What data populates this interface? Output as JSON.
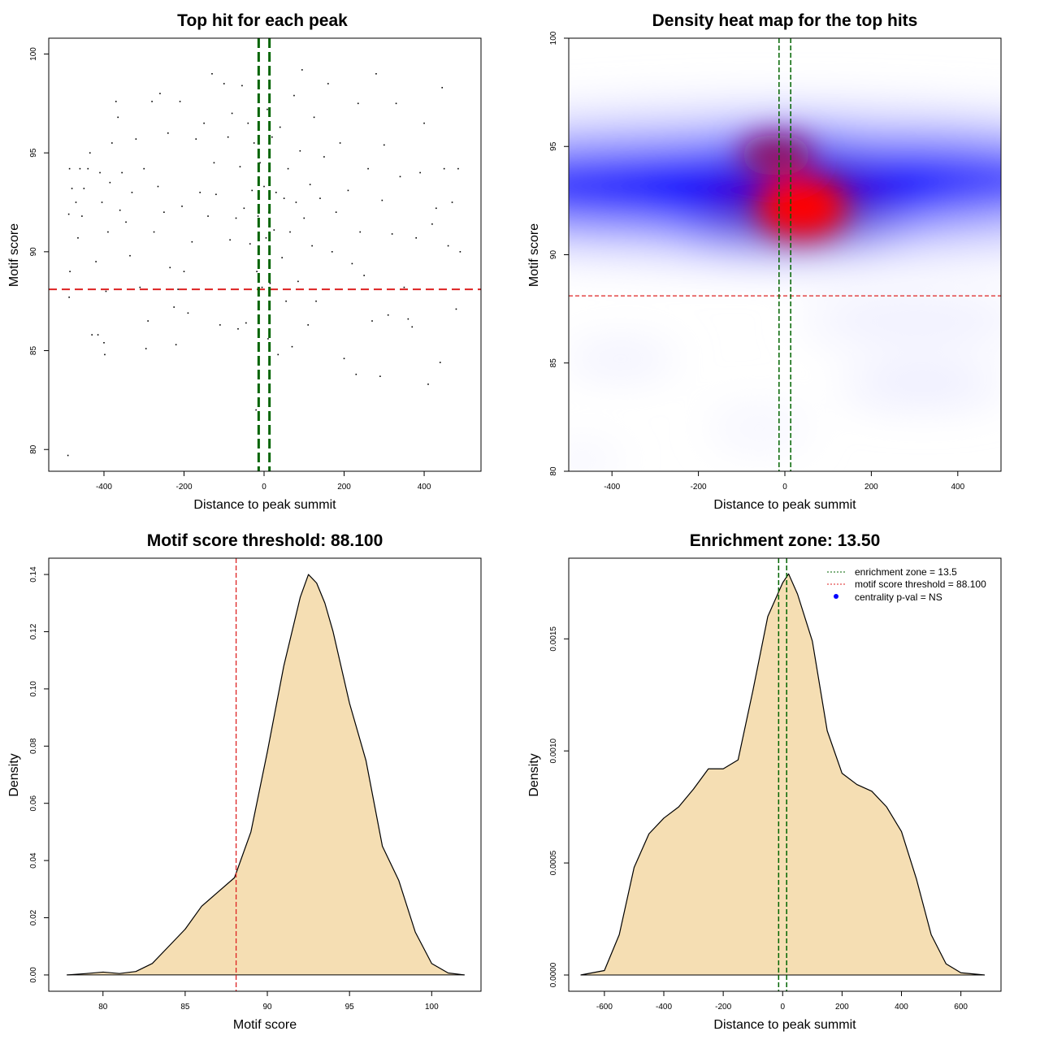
{
  "colors": {
    "green": "#006400",
    "red": "#dd2222",
    "fill": "#f5deb3",
    "blue": "#0000ff"
  },
  "chart_data": [
    {
      "type": "scatter",
      "title": "Top hit for each peak",
      "xlabel": "Distance to peak summit",
      "ylabel": "Motif score",
      "xlim": [
        -538,
        542
      ],
      "ylim": [
        78.9,
        100.8
      ],
      "xticks": [
        -400,
        -200,
        0,
        200,
        400
      ],
      "yticks": [
        80,
        85,
        90,
        95,
        100
      ],
      "hline": 88.1,
      "vlines": [
        -13.5,
        13.5
      ],
      "points": [
        [
          -490,
          79.7
        ],
        [
          -487,
          87.7
        ],
        [
          -485,
          89
        ],
        [
          -488,
          91.9
        ],
        [
          -486,
          94.2
        ],
        [
          -480,
          93.2
        ],
        [
          -470,
          92.5
        ],
        [
          -465,
          90.7
        ],
        [
          -460,
          94.2
        ],
        [
          -455,
          91.8
        ],
        [
          -450,
          93.2
        ],
        [
          -440,
          94.2
        ],
        [
          -435,
          95
        ],
        [
          -430,
          85.8
        ],
        [
          -420,
          89.5
        ],
        [
          -415,
          85.8
        ],
        [
          -410,
          94
        ],
        [
          -405,
          92.5
        ],
        [
          -400,
          85.4
        ],
        [
          -398,
          84.8
        ],
        [
          -395,
          88
        ],
        [
          -390,
          91
        ],
        [
          -385,
          93.5
        ],
        [
          -380,
          95.5
        ],
        [
          -370,
          97.6
        ],
        [
          -365,
          96.8
        ],
        [
          -360,
          92.1
        ],
        [
          -355,
          94
        ],
        [
          -345,
          91.5
        ],
        [
          -335,
          89.8
        ],
        [
          -330,
          93
        ],
        [
          -320,
          95.7
        ],
        [
          -310,
          88.2
        ],
        [
          -300,
          94.2
        ],
        [
          -295,
          85.1
        ],
        [
          -290,
          86.5
        ],
        [
          -280,
          97.6
        ],
        [
          -275,
          91
        ],
        [
          -265,
          93.3
        ],
        [
          -260,
          98
        ],
        [
          -250,
          92
        ],
        [
          -240,
          96
        ],
        [
          -235,
          89.2
        ],
        [
          -225,
          87.2
        ],
        [
          -220,
          85.3
        ],
        [
          -215,
          88.1
        ],
        [
          -210,
          97.6
        ],
        [
          -205,
          92.3
        ],
        [
          -200,
          89
        ],
        [
          -190,
          86.9
        ],
        [
          -180,
          90.5
        ],
        [
          -170,
          95.7
        ],
        [
          -160,
          93
        ],
        [
          -150,
          96.5
        ],
        [
          -140,
          91.8
        ],
        [
          -130,
          99
        ],
        [
          -125,
          94.5
        ],
        [
          -120,
          92.9
        ],
        [
          -110,
          86.3
        ],
        [
          -100,
          98.5
        ],
        [
          -90,
          95.8
        ],
        [
          -85,
          90.6
        ],
        [
          -80,
          97
        ],
        [
          -70,
          91.7
        ],
        [
          -65,
          86.1
        ],
        [
          -60,
          94.3
        ],
        [
          -55,
          98.4
        ],
        [
          -50,
          92.2
        ],
        [
          -45,
          86.4
        ],
        [
          -40,
          96.5
        ],
        [
          -35,
          90.4
        ],
        [
          -30,
          93.1
        ],
        [
          -25,
          95.5
        ],
        [
          -20,
          82
        ],
        [
          -18,
          89
        ],
        [
          -15,
          91.8
        ],
        [
          -10,
          94.5
        ],
        [
          -5,
          88.2
        ],
        [
          0,
          93.3
        ],
        [
          5,
          90.7
        ],
        [
          8,
          97.2
        ],
        [
          10,
          85.6
        ],
        [
          12,
          92
        ],
        [
          15,
          88.4
        ],
        [
          20,
          95.8
        ],
        [
          25,
          91.1
        ],
        [
          30,
          93
        ],
        [
          35,
          84.8
        ],
        [
          40,
          96.3
        ],
        [
          45,
          89.7
        ],
        [
          50,
          92.7
        ],
        [
          55,
          87.5
        ],
        [
          60,
          94.2
        ],
        [
          65,
          91
        ],
        [
          70,
          85.2
        ],
        [
          75,
          97.9
        ],
        [
          80,
          92.5
        ],
        [
          85,
          88.5
        ],
        [
          90,
          95.1
        ],
        [
          95,
          99.2
        ],
        [
          100,
          91.7
        ],
        [
          110,
          86.3
        ],
        [
          115,
          93.4
        ],
        [
          120,
          90.3
        ],
        [
          125,
          96.8
        ],
        [
          130,
          87.5
        ],
        [
          140,
          92.7
        ],
        [
          150,
          94.8
        ],
        [
          160,
          98.5
        ],
        [
          170,
          90
        ],
        [
          180,
          92
        ],
        [
          190,
          95.5
        ],
        [
          200,
          84.6
        ],
        [
          210,
          93.1
        ],
        [
          220,
          89.4
        ],
        [
          230,
          83.8
        ],
        [
          235,
          97.5
        ],
        [
          240,
          91
        ],
        [
          250,
          88.8
        ],
        [
          260,
          94.2
        ],
        [
          270,
          86.5
        ],
        [
          280,
          99
        ],
        [
          290,
          83.7
        ],
        [
          295,
          92.6
        ],
        [
          300,
          95.4
        ],
        [
          310,
          86.8
        ],
        [
          320,
          90.9
        ],
        [
          330,
          97.5
        ],
        [
          340,
          93.8
        ],
        [
          350,
          88.2
        ],
        [
          360,
          86.6
        ],
        [
          370,
          86.2
        ],
        [
          380,
          90.7
        ],
        [
          390,
          94
        ],
        [
          400,
          96.5
        ],
        [
          410,
          83.3
        ],
        [
          420,
          91.4
        ],
        [
          430,
          92.2
        ],
        [
          440,
          84.4
        ],
        [
          445,
          98.3
        ],
        [
          450,
          94.2
        ],
        [
          460,
          90.3
        ],
        [
          470,
          92.5
        ],
        [
          480,
          87.1
        ],
        [
          485,
          94.2
        ],
        [
          490,
          90
        ]
      ]
    },
    {
      "type": "heatmap",
      "title": "Density heat map for the top hits",
      "xlabel": "Distance to peak summit",
      "ylabel": "Motif score",
      "xlim": [
        -500,
        500
      ],
      "ylim": [
        80,
        100
      ],
      "xticks": [
        -400,
        -200,
        0,
        200,
        400
      ],
      "yticks": [
        80,
        85,
        90,
        95,
        100
      ],
      "hline": 88.1,
      "vlines": [
        -13.5,
        13.5
      ],
      "peak": {
        "x": 40,
        "y": 92.2
      }
    },
    {
      "type": "area",
      "title": "Motif score threshold: 88.100",
      "xlabel": "Motif score",
      "ylabel": "Density",
      "xlim": [
        76.7,
        103
      ],
      "ylim": [
        -0.0057,
        0.1457
      ],
      "xticks": [
        80,
        85,
        90,
        95,
        100
      ],
      "yticks": [
        0.0,
        0.02,
        0.04,
        0.06,
        0.08,
        0.1,
        0.12,
        0.14
      ],
      "ytick_labels": [
        "0.00",
        "0.02",
        "0.04",
        "0.06",
        "0.08",
        "0.10",
        "0.12",
        "0.14"
      ],
      "vline": 88.1,
      "x": [
        77.8,
        79,
        80,
        81,
        82,
        83,
        84,
        85,
        86,
        87,
        88,
        89,
        90,
        91,
        92,
        92.5,
        93,
        93.5,
        94,
        95,
        96,
        97,
        98,
        99,
        100,
        101,
        102
      ],
      "y": [
        0,
        0.0005,
        0.001,
        0.0005,
        0.0012,
        0.004,
        0.01,
        0.016,
        0.024,
        0.029,
        0.034,
        0.05,
        0.078,
        0.108,
        0.132,
        0.14,
        0.137,
        0.13,
        0.12,
        0.095,
        0.075,
        0.045,
        0.033,
        0.015,
        0.004,
        0.0007,
        0
      ]
    },
    {
      "type": "area",
      "title": "Enrichment zone: 13.50",
      "xlabel": "Distance to peak summit",
      "ylabel": "Density",
      "xlim": [
        -720,
        735
      ],
      "ylim": [
        -7.25e-05,
        0.00186
      ],
      "xticks": [
        -600,
        -400,
        -200,
        0,
        200,
        400,
        600
      ],
      "yticks": [
        0,
        0.0005,
        0.001,
        0.0015
      ],
      "ytick_labels": [
        "0.0000",
        "0.0005",
        "0.0010",
        "0.0015"
      ],
      "vlines": [
        -13.5,
        13.5
      ],
      "x": [
        -680,
        -600,
        -550,
        -500,
        -450,
        -400,
        -350,
        -300,
        -250,
        -200,
        -150,
        -100,
        -50,
        0,
        20,
        50,
        100,
        150,
        200,
        250,
        300,
        350,
        400,
        450,
        500,
        550,
        600,
        680
      ],
      "y": [
        0,
        2e-05,
        0.00018,
        0.00048,
        0.00063,
        0.0007,
        0.00075,
        0.00083,
        0.00092,
        0.00092,
        0.00096,
        0.00127,
        0.0016,
        0.00175,
        0.00179,
        0.0017,
        0.00149,
        0.00109,
        0.0009,
        0.00085,
        0.00082,
        0.00075,
        0.00064,
        0.00043,
        0.00018,
        5e-05,
        1e-05,
        0
      ],
      "legend": [
        {
          "label": "enrichment zone = 13.5",
          "style": "dotted",
          "color": "#006400"
        },
        {
          "label": "motif score threshold = 88.100",
          "style": "dotted",
          "color": "#dd2222"
        },
        {
          "label": "centrality p-val = NS",
          "style": "dot",
          "color": "#0000ff"
        }
      ],
      "legend_position": "top-right"
    }
  ]
}
